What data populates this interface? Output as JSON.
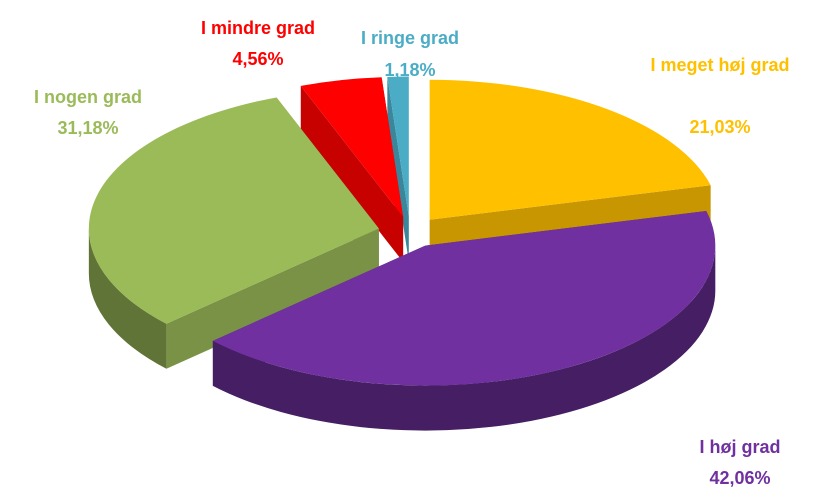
{
  "chart_data": {
    "type": "pie",
    "categories": [
      "I meget høj grad",
      "I høj grad",
      "I nogen grad",
      "I mindre grad",
      "I ringe grad"
    ],
    "values": [
      21.03,
      42.06,
      31.18,
      4.56,
      1.18
    ],
    "value_labels": [
      "21,03%",
      "42,06%",
      "31,18%",
      "4,56%",
      "1,18%"
    ],
    "colors": [
      "#ffc000",
      "#7030a0",
      "#9bbb59",
      "#ff0000",
      "#4bacc6"
    ]
  }
}
